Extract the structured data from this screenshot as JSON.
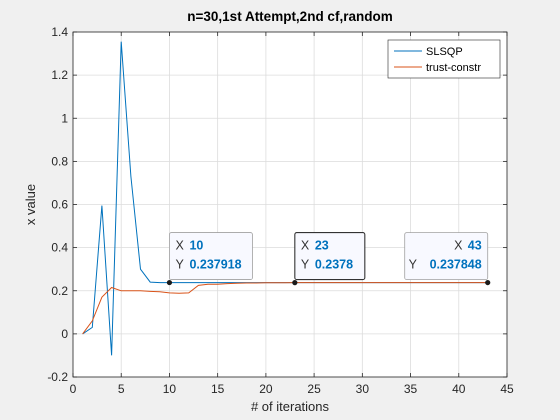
{
  "chart_data": {
    "type": "line",
    "title": "n=30,1st Attempt,2nd cf,random",
    "xlabel": "# of iterations",
    "ylabel": "x value",
    "xlim": [
      0,
      45
    ],
    "ylim": [
      -0.2,
      1.4
    ],
    "xticks": [
      0,
      5,
      10,
      15,
      20,
      25,
      30,
      35,
      40,
      45
    ],
    "yticks": [
      -0.2,
      0,
      0.2,
      0.4,
      0.6,
      0.8,
      1,
      1.2,
      1.4
    ],
    "grid": true,
    "legend_position": "top-right",
    "series": [
      {
        "name": "SLSQP",
        "color": "#0072bd",
        "x": [
          1,
          2,
          3,
          4,
          5,
          6,
          7,
          8,
          9,
          10,
          11,
          12,
          13,
          14,
          15,
          16,
          17,
          18,
          19,
          20,
          21,
          22,
          23,
          24,
          25,
          26,
          27,
          28,
          29,
          30,
          31,
          32,
          33,
          34,
          35,
          36,
          37,
          38,
          39,
          40,
          41,
          42,
          43
        ],
        "y": [
          0,
          0.03,
          0.595,
          -0.1,
          1.355,
          0.73,
          0.3,
          0.24,
          0.238,
          0.237918,
          0.2379,
          0.2379,
          0.2378,
          0.2378,
          0.2378,
          0.2378,
          0.2378,
          0.2378,
          0.2378,
          0.2378,
          0.2378,
          0.2378,
          0.2378,
          0.2378,
          0.2378,
          0.2378,
          0.2378,
          0.2378,
          0.2378,
          0.2378,
          0.2378,
          0.2378,
          0.2378,
          0.2378,
          0.2378,
          0.2378,
          0.2378,
          0.2378,
          0.2378,
          0.2378,
          0.2378,
          0.2378,
          0.237848
        ]
      },
      {
        "name": "trust-constr",
        "color": "#d95319",
        "x": [
          1,
          2,
          3,
          4,
          5,
          6,
          7,
          8,
          9,
          10,
          11,
          12,
          13,
          14,
          15,
          16,
          17,
          18,
          19,
          20,
          21,
          22,
          23,
          24,
          25,
          26,
          27,
          28,
          29,
          30,
          31,
          32,
          33,
          34,
          35,
          36,
          37,
          38,
          39,
          40,
          41,
          42,
          43
        ],
        "y": [
          0,
          0.06,
          0.17,
          0.215,
          0.2,
          0.2,
          0.2,
          0.197,
          0.195,
          0.19,
          0.188,
          0.19,
          0.225,
          0.23,
          0.23,
          0.233,
          0.235,
          0.236,
          0.236,
          0.237,
          0.237,
          0.2375,
          0.2378,
          0.2378,
          0.2378,
          0.2378,
          0.2378,
          0.2378,
          0.2378,
          0.2378,
          0.2378,
          0.2378,
          0.2378,
          0.2378,
          0.2378,
          0.2378,
          0.2378,
          0.2378,
          0.2378,
          0.2378,
          0.2378,
          0.2378,
          0.237848
        ]
      }
    ],
    "datatips": [
      {
        "x_label": "X",
        "x_value": "10",
        "y_label": "Y",
        "y_value": "0.237918",
        "x": 10,
        "y": 0.237918,
        "align": "left"
      },
      {
        "x_label": "X",
        "x_value": "23",
        "y_label": "Y",
        "y_value": "0.2378",
        "x": 23,
        "y": 0.2378,
        "align": "left",
        "active": true
      },
      {
        "x_label": "X",
        "x_value": "43",
        "y_label": "Y",
        "y_value": "0.237848",
        "x": 43,
        "y": 0.237848,
        "align": "right"
      }
    ]
  }
}
